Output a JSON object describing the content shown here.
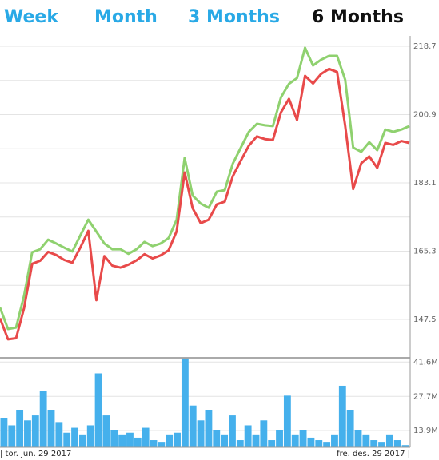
{
  "tabs": [
    "Week",
    "Month",
    "3 Months",
    "6 Months"
  ],
  "active_tab": 3,
  "tab_color": "#29a9e6",
  "active_tab_color": "#111111",
  "date_range": [
    "| tor. jun. 29 2017",
    "fre. des. 29 2017 |"
  ],
  "chart_data": [
    {
      "type": "line",
      "ylim": [
        137.5,
        221.4
      ],
      "yticks": [
        147.5,
        165.3,
        183.1,
        200.9,
        218.7
      ],
      "minor_yticks": [
        156.4,
        174.2,
        192,
        209.8
      ],
      "grid": true,
      "series": [
        {
          "color": "#8fd16f",
          "values": [
            150.6,
            145.0,
            145.4,
            153.7,
            165.0,
            165.8,
            168.3,
            167.3,
            166.2,
            165.2,
            169.4,
            173.5,
            170.4,
            167.3,
            165.8,
            165.8,
            164.6,
            165.8,
            167.7,
            166.6,
            167.3,
            168.7,
            173.5,
            189.6,
            179.8,
            177.7,
            176.6,
            180.8,
            181.2,
            188.1,
            192.3,
            196.4,
            198.5,
            198.1,
            197.9,
            205.4,
            208.9,
            210.4,
            218.3,
            213.7,
            215.2,
            216.2,
            216.2,
            210.0,
            192.3,
            191.2,
            193.7,
            191.6,
            197.0,
            196.4,
            197.0,
            197.9
          ]
        },
        {
          "color": "#e84a4a",
          "values": [
            147.8,
            142.3,
            142.6,
            150.5,
            162.0,
            162.8,
            165.1,
            164.3,
            163.0,
            162.3,
            166.2,
            170.6,
            152.5,
            164.0,
            161.5,
            161.0,
            161.8,
            162.9,
            164.5,
            163.4,
            164.2,
            165.5,
            170.5,
            185.8,
            176.5,
            172.6,
            173.5,
            177.5,
            178.2,
            184.8,
            188.9,
            192.8,
            195.2,
            194.5,
            194.3,
            201.5,
            205.0,
            199.5,
            211.0,
            209.0,
            211.5,
            212.8,
            212.0,
            198.0,
            181.5,
            188.2,
            190.0,
            187.0,
            193.5,
            193.0,
            194.0,
            193.5
          ]
        }
      ]
    },
    {
      "type": "bar",
      "color": "#45b0ec",
      "ylim": [
        7.1,
        43.3
      ],
      "yticks": [
        {
          "value": 13.9,
          "label": "13.9M"
        },
        {
          "value": 27.7,
          "label": "27.7M"
        },
        {
          "value": 41.6,
          "label": "41.6M"
        }
      ],
      "values": [
        19,
        16,
        22,
        18,
        20,
        30,
        22,
        17,
        13,
        15,
        12,
        16,
        37,
        20,
        14,
        12,
        13,
        11,
        15,
        10,
        9,
        12,
        13,
        43,
        24,
        18,
        22,
        14,
        12,
        20,
        10,
        16,
        12,
        18,
        10,
        14,
        28,
        12,
        14,
        11,
        10,
        9,
        12,
        32,
        22,
        14,
        12,
        10,
        9,
        12,
        10,
        8
      ]
    }
  ]
}
